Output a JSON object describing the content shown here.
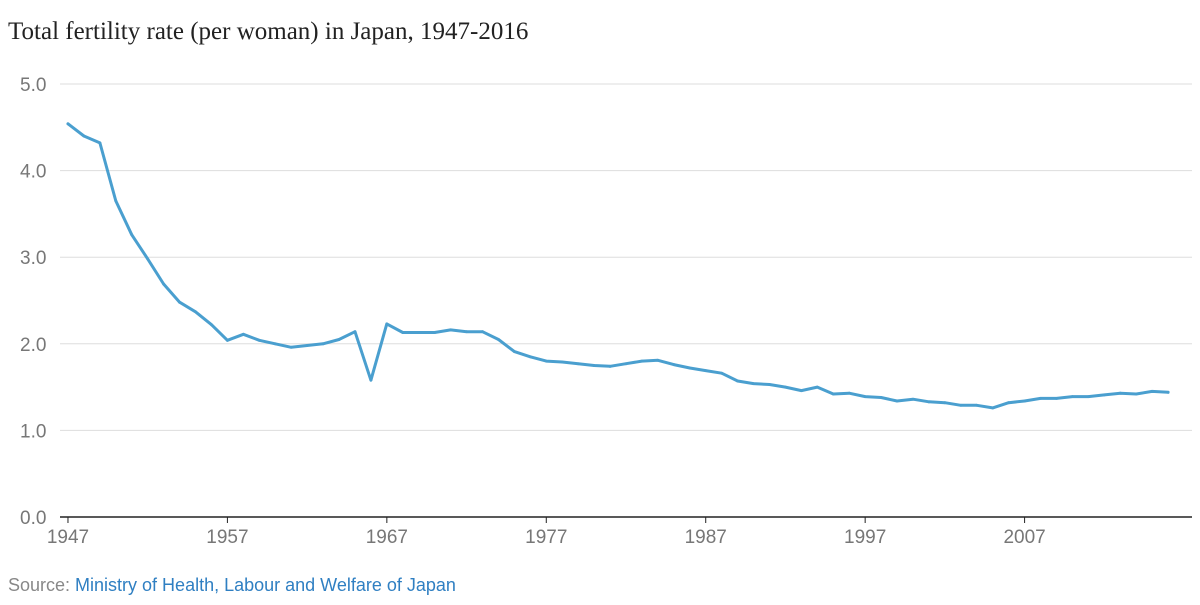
{
  "chart_data": {
    "type": "line",
    "title": "Total fertility rate (per woman) in Japan, 1947-2016",
    "xlabel": "",
    "ylabel": "",
    "xlim": [
      1946.5,
      2017.5
    ],
    "ylim": [
      0,
      5
    ],
    "y_ticks": [
      0,
      1,
      2,
      3,
      4,
      5
    ],
    "y_tick_labels": [
      "0.0",
      "1.0",
      "2.0",
      "3.0",
      "4.0",
      "5.0"
    ],
    "x_ticks": [
      1947,
      1957,
      1967,
      1977,
      1987,
      1997,
      2007
    ],
    "x_tick_labels": [
      "1947",
      "1957",
      "1967",
      "1977",
      "1987",
      "1997",
      "2007"
    ],
    "grid": true,
    "series": [
      {
        "name": "Total fertility rate",
        "color": "#4a9fcf",
        "x": [
          1947,
          1948,
          1949,
          1950,
          1951,
          1952,
          1953,
          1954,
          1955,
          1956,
          1957,
          1958,
          1959,
          1960,
          1961,
          1962,
          1963,
          1964,
          1965,
          1966,
          1967,
          1968,
          1969,
          1970,
          1971,
          1972,
          1973,
          1974,
          1975,
          1976,
          1977,
          1978,
          1979,
          1980,
          1981,
          1982,
          1983,
          1984,
          1985,
          1986,
          1987,
          1988,
          1989,
          1990,
          1991,
          1992,
          1993,
          1994,
          1995,
          1996,
          1997,
          1998,
          1999,
          2000,
          2001,
          2002,
          2003,
          2004,
          2005,
          2006,
          2007,
          2008,
          2009,
          2010,
          2011,
          2012,
          2013,
          2014,
          2015,
          2016
        ],
        "values": [
          4.54,
          4.4,
          4.32,
          3.65,
          3.26,
          2.98,
          2.69,
          2.48,
          2.37,
          2.22,
          2.04,
          2.11,
          2.04,
          2.0,
          1.96,
          1.98,
          2.0,
          2.05,
          2.14,
          1.58,
          2.23,
          2.13,
          2.13,
          2.13,
          2.16,
          2.14,
          2.14,
          2.05,
          1.91,
          1.85,
          1.8,
          1.79,
          1.77,
          1.75,
          1.74,
          1.77,
          1.8,
          1.81,
          1.76,
          1.72,
          1.69,
          1.66,
          1.57,
          1.54,
          1.53,
          1.5,
          1.46,
          1.5,
          1.42,
          1.43,
          1.39,
          1.38,
          1.34,
          1.36,
          1.33,
          1.32,
          1.29,
          1.29,
          1.26,
          1.32,
          1.34,
          1.37,
          1.37,
          1.39,
          1.39,
          1.41,
          1.43,
          1.42,
          1.45,
          1.44
        ]
      }
    ],
    "gridline_color": "#dddddd",
    "axis_color": "#222222"
  },
  "source": {
    "prefix": "Source: ",
    "link_text": "Ministry of Health, Labour and Welfare of Japan"
  }
}
